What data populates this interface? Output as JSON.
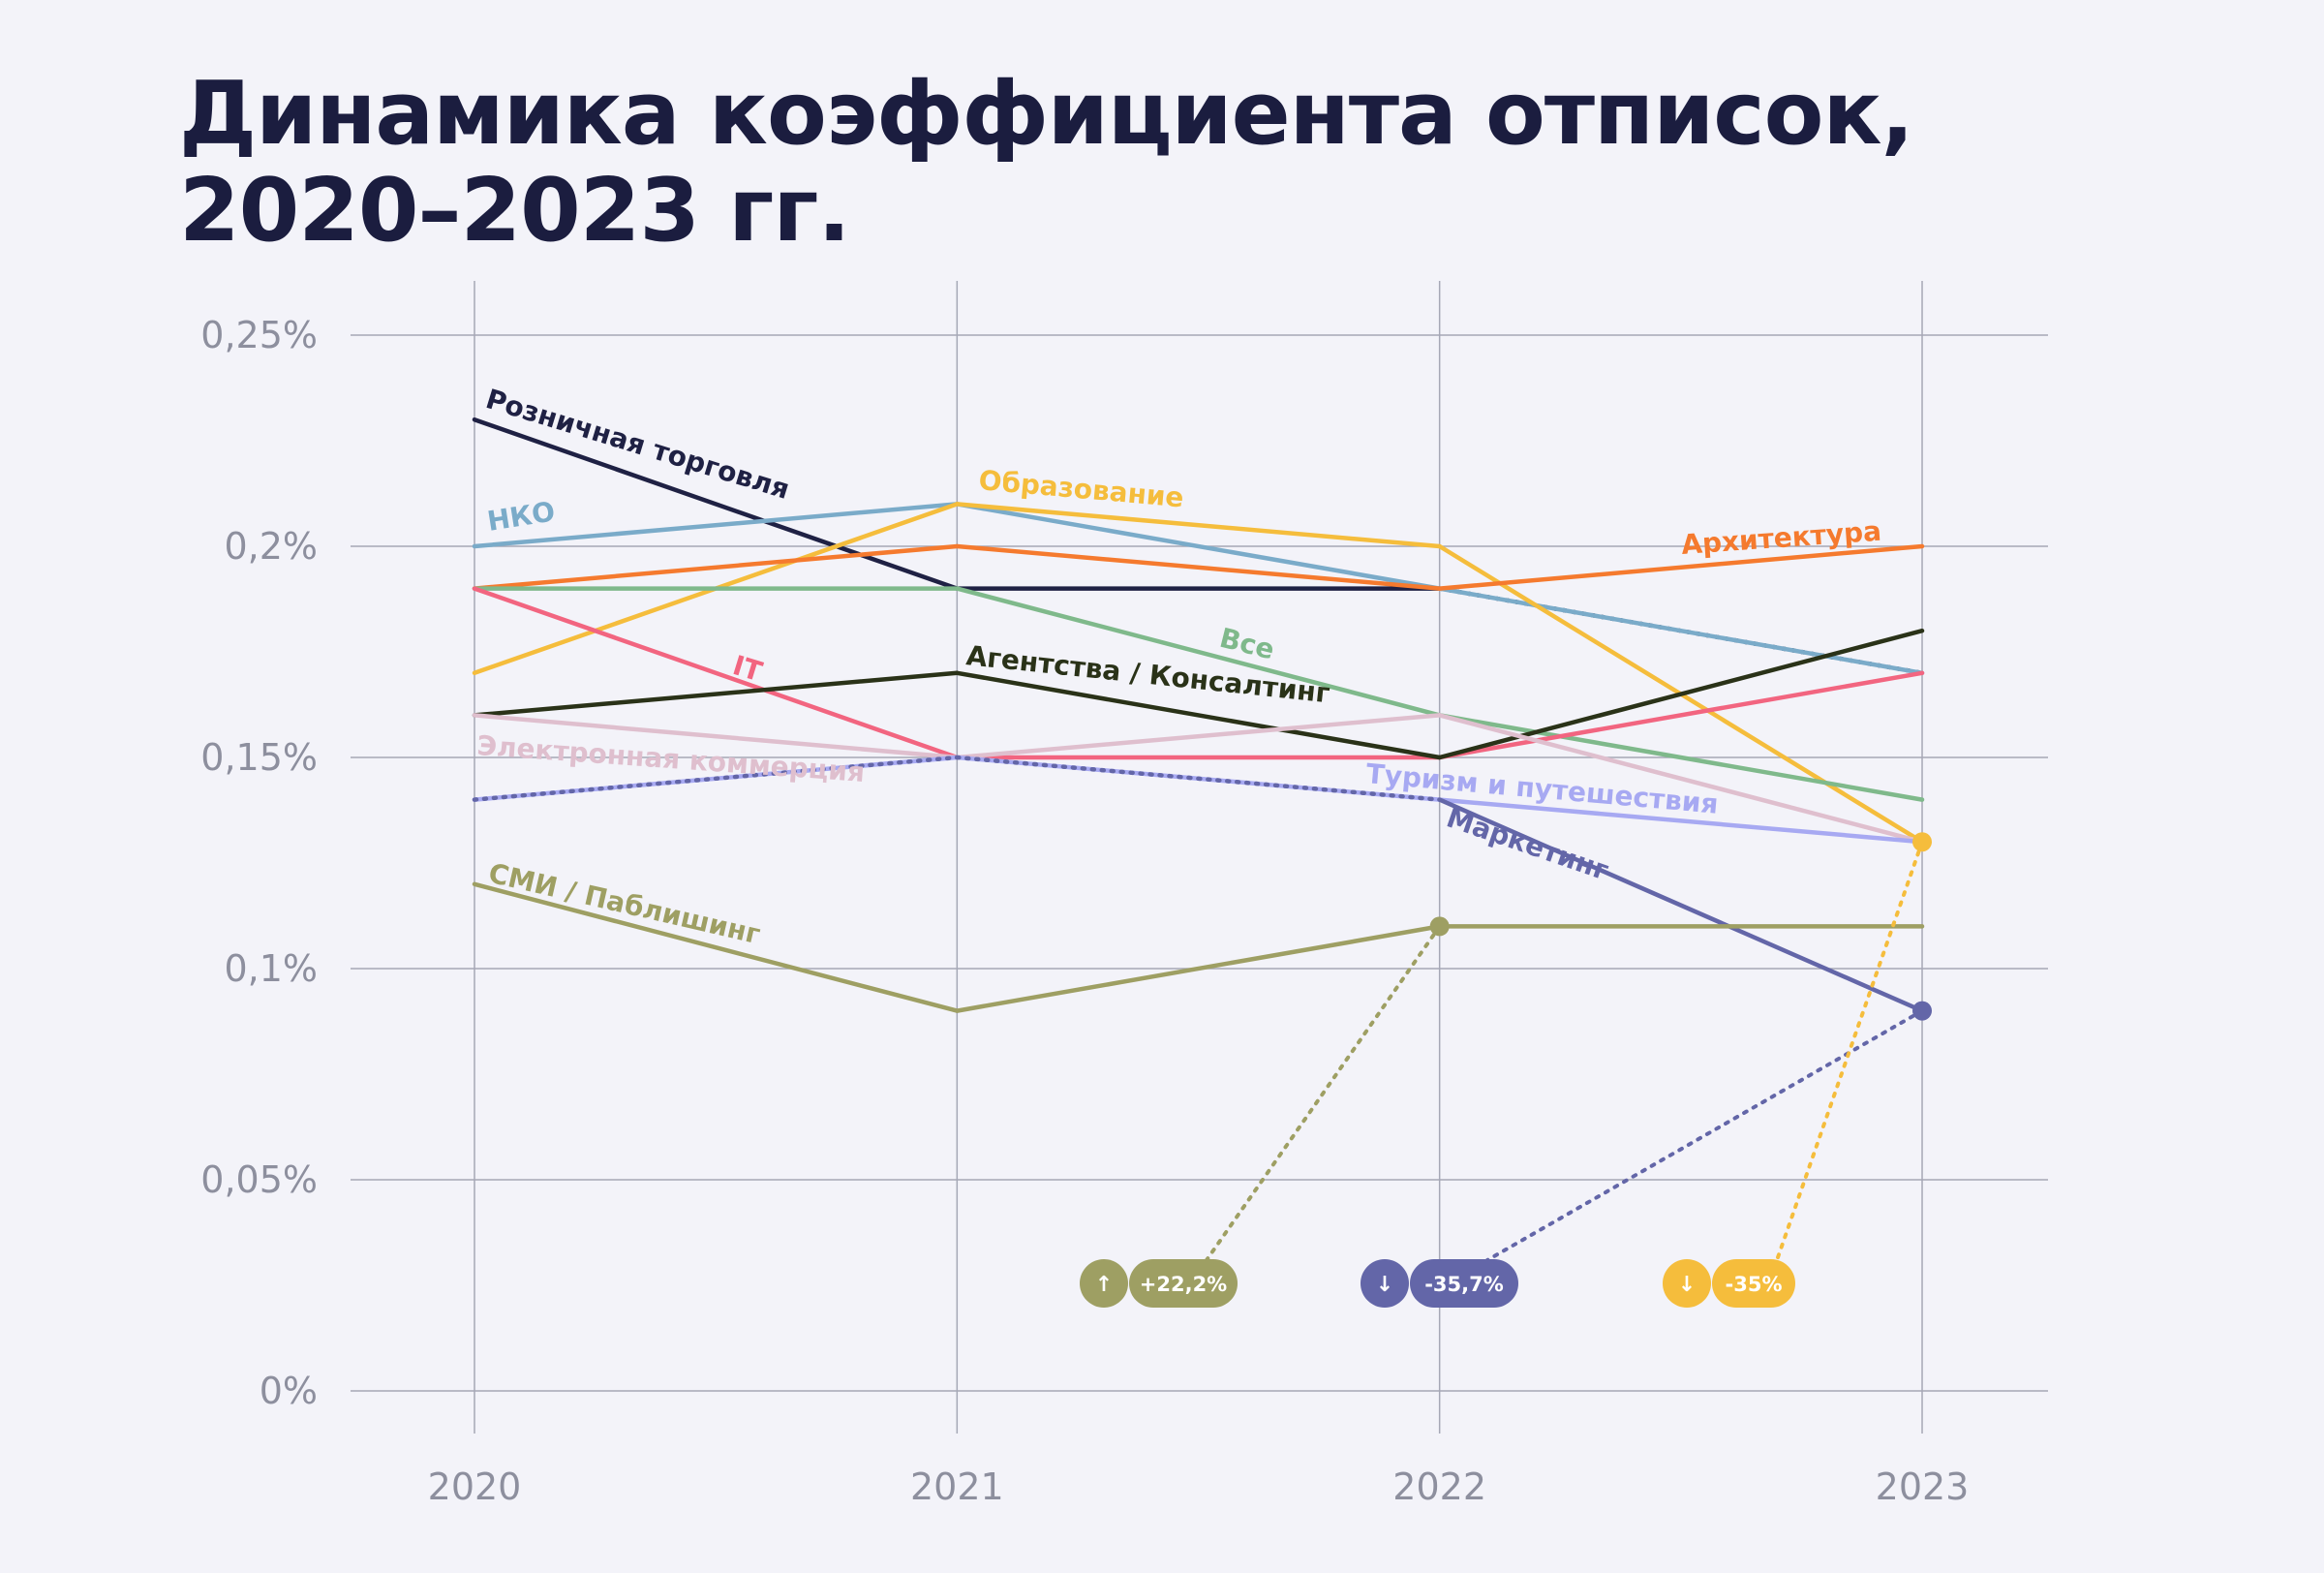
{
  "title": {
    "line1": "Динамика коэффициента отписок,",
    "line2": "2020–2023 гг."
  },
  "chart_data": {
    "type": "line",
    "x": [
      2020,
      2021,
      2022,
      2023
    ],
    "xlabels": [
      "2020",
      "2021",
      "2022",
      "2023"
    ],
    "ylim": [
      0,
      0.25
    ],
    "yticks": [
      0,
      0.05,
      0.1,
      0.15,
      0.2,
      0.25
    ],
    "yticklabels": [
      "0%",
      "0,05%",
      "0,1%",
      "0,15%",
      "0,2%",
      "0,25%"
    ],
    "grid": true,
    "series": [
      {
        "name": "Розничная торговля",
        "values": [
          0.23,
          0.19,
          0.19,
          0.17
        ],
        "color": "#1f2144",
        "dash": [
          false,
          false,
          true
        ]
      },
      {
        "name": "НКО",
        "values": [
          0.2,
          0.21,
          0.19,
          0.17
        ],
        "color": "#7aabc9",
        "dash": [
          false,
          false,
          false
        ]
      },
      {
        "name": "Образование",
        "values": [
          0.17,
          0.21,
          0.2,
          0.13
        ],
        "color": "#f5bd3c",
        "dash": [
          false,
          false,
          false
        ]
      },
      {
        "name": "Архитектура",
        "values": [
          0.19,
          0.2,
          0.19,
          0.2
        ],
        "color": "#f57a2e",
        "dash": [
          false,
          false,
          false
        ]
      },
      {
        "name": "Все",
        "values": [
          0.19,
          0.19,
          0.16,
          0.14
        ],
        "color": "#7fb98b",
        "dash": [
          false,
          false,
          false
        ]
      },
      {
        "name": "IT",
        "values": [
          0.19,
          0.15,
          0.15,
          0.17
        ],
        "color": "#f26580",
        "dash": [
          false,
          false,
          false
        ]
      },
      {
        "name": "Агентства / Консалтинг",
        "values": [
          0.16,
          0.17,
          0.15,
          0.18
        ],
        "color": "#2a3218",
        "dash": [
          false,
          false,
          false
        ]
      },
      {
        "name": "Электронная коммерция",
        "values": [
          0.16,
          0.15,
          0.16,
          0.13
        ],
        "color": "#dfbfce",
        "dash": [
          false,
          false,
          false
        ]
      },
      {
        "name": "Туризм и путешествия",
        "values": [
          0.14,
          0.15,
          0.14,
          0.13
        ],
        "color": "#a7a9f2",
        "dash": [
          false,
          false,
          false
        ]
      },
      {
        "name": "Маркетинг",
        "values": [
          0.14,
          0.15,
          0.14,
          0.09
        ],
        "color": "#6366a8",
        "dash": [
          true,
          true,
          false
        ]
      },
      {
        "name": "СМИ / Паблишинг",
        "values": [
          0.12,
          0.09,
          0.11,
          0.11
        ],
        "color": "#9e9f63",
        "dash": [
          false,
          false,
          false
        ]
      }
    ],
    "annotations": [
      {
        "text": "+22,2%",
        "arrow": "↑",
        "color": "#9e9f63",
        "x": 2022,
        "y": 0.11
      },
      {
        "text": "-35,7%",
        "arrow": "↓",
        "color": "#6366a8",
        "x": 2023,
        "y": 0.09
      },
      {
        "text": "-35%",
        "arrow": "↓",
        "color": "#f5bd3c",
        "x": 2023,
        "y": 0.13
      }
    ]
  }
}
